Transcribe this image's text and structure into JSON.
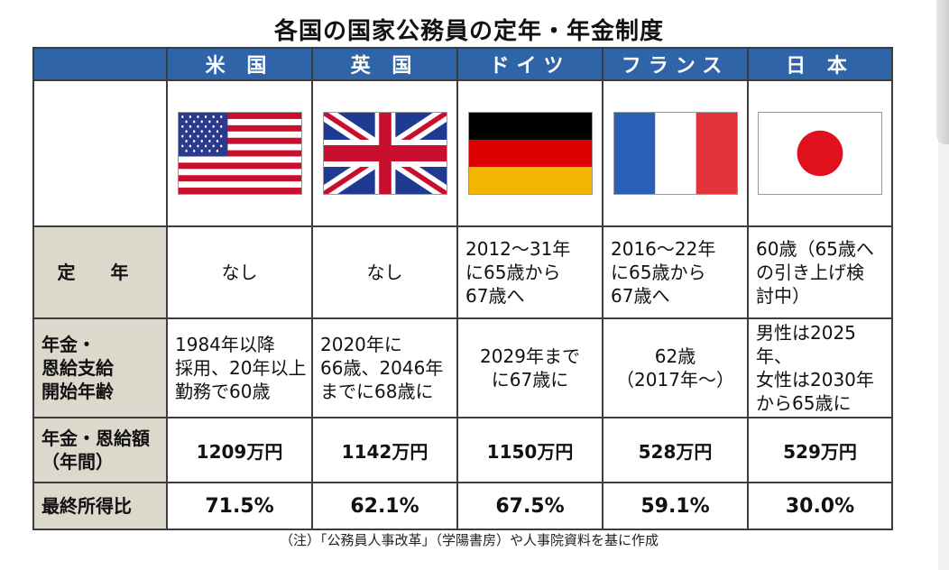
{
  "title": "各国の国家公務員の定年・年金制度",
  "countries": [
    "米 国",
    "英 国",
    "ドイツ",
    "フランス",
    "日 本"
  ],
  "flags": [
    {
      "name": "us-flag-icon"
    },
    {
      "name": "uk-flag-icon"
    },
    {
      "name": "germany-flag-icon"
    },
    {
      "name": "france-flag-icon"
    },
    {
      "name": "japan-flag-icon"
    }
  ],
  "rows": {
    "teinen": {
      "label": "定 年",
      "values": [
        [
          "なし"
        ],
        [
          "なし"
        ],
        [
          "2012～31年",
          "に65歳から",
          "67歳へ"
        ],
        [
          "2016～22年",
          "に65歳から",
          "67歳へ"
        ],
        [
          "60歳（65歳へ",
          "の引き上げ検",
          "討中）"
        ]
      ]
    },
    "start": {
      "label": [
        "年金・",
        "恩給支給",
        "開始年齢"
      ],
      "values": [
        [
          "1984年以降",
          "採用、20年以上",
          "勤務で60歳"
        ],
        [
          "2020年に",
          "66歳、2046年",
          "までに68歳に"
        ],
        [
          "2029年まで",
          "に67歳に"
        ],
        [
          "62歳",
          "（2017年～）"
        ],
        [
          "男性は2025年、",
          "女性は2030年",
          "から65歳に"
        ]
      ]
    },
    "amount": {
      "label": [
        "年金・恩給額",
        "（年間）"
      ],
      "values": [
        "1209万円",
        "1142万円",
        "1150万円",
        "528万円",
        "529万円"
      ]
    },
    "ratio": {
      "label": "最終所得比",
      "values": [
        "71.5%",
        "62.1%",
        "67.5%",
        "59.1%",
        "30.0%"
      ]
    }
  },
  "note": "（注）「公務員人事改革」（学陽書房）や人事院資料を基に作成",
  "colors": {
    "header_blue": "#2f64a8",
    "row_header_beige": "#ddd8cc",
    "us_red": "#c8102e",
    "us_blue": "#2b3a8c",
    "uk_blue": "#1f3a93",
    "de_gold": "#f2b600",
    "fr_blue": "#2a5fb8",
    "jp_red": "#e0101c"
  }
}
